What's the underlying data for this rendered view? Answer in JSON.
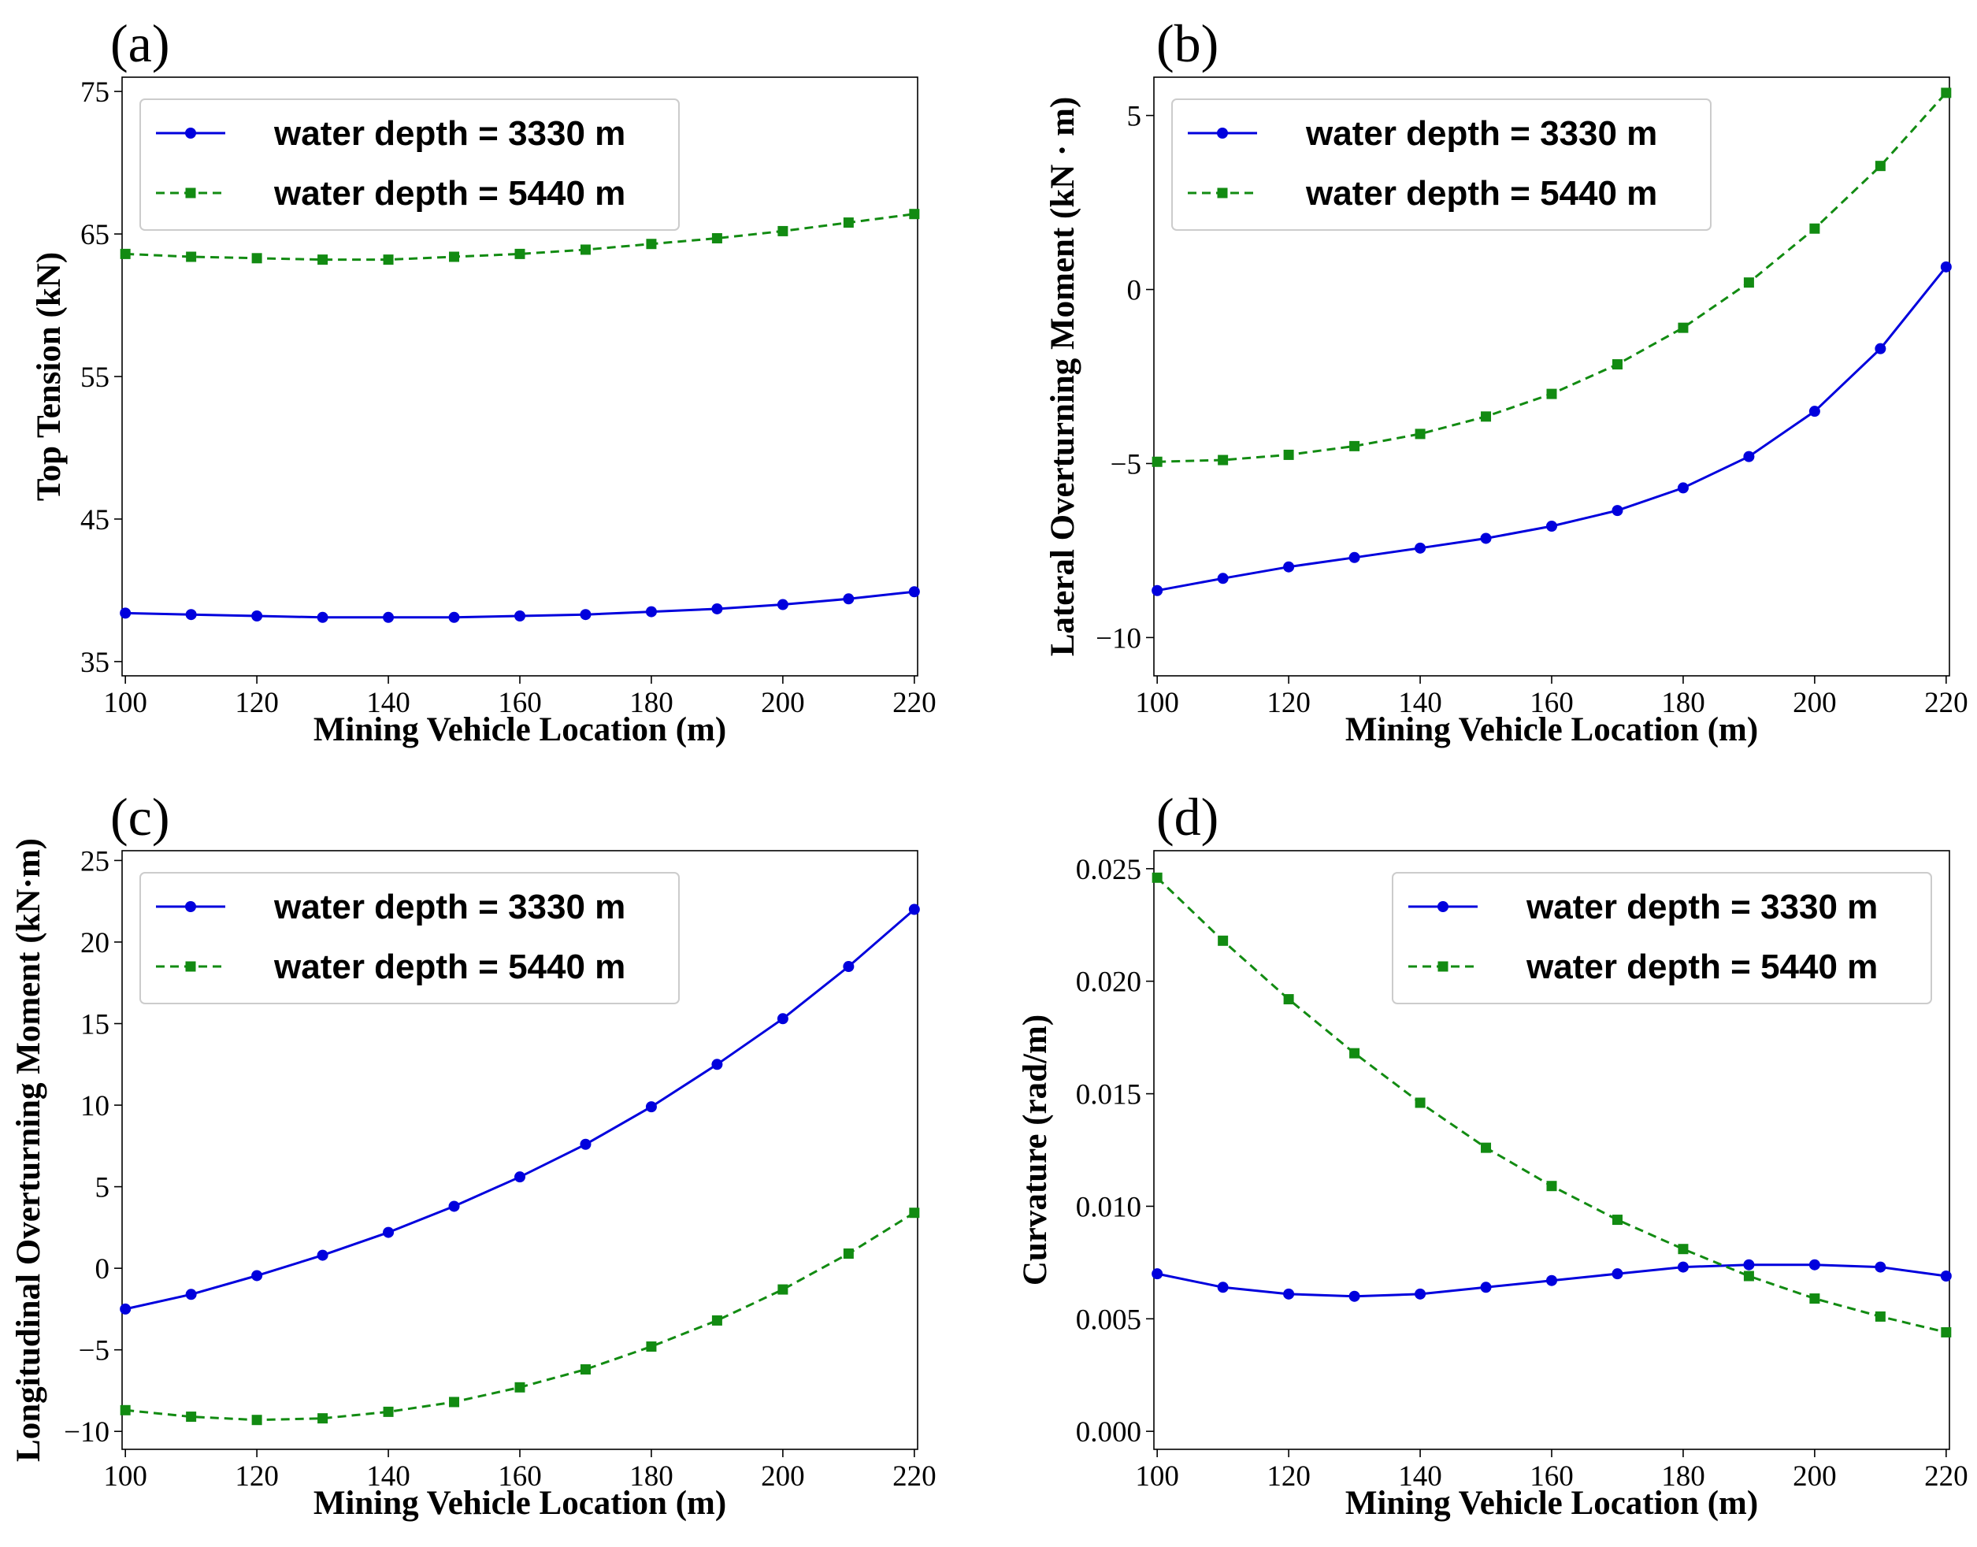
{
  "colors": {
    "series1": "#0000dd",
    "series2": "#128b12",
    "axis": "#000000",
    "legend_border": "#cccccc"
  },
  "chart_data": [
    {
      "panel_label": "(a)",
      "type": "line",
      "xlabel": "Mining Vehicle Location (m)",
      "ylabel": "Top Tension (kN)",
      "xlim": [
        99.5,
        220.5
      ],
      "ylim": [
        34,
        76
      ],
      "xticks": [
        100,
        120,
        140,
        160,
        180,
        200,
        220
      ],
      "xtick_labels": [
        "100",
        "120",
        "140",
        "160",
        "180",
        "200",
        "220"
      ],
      "yticks": [
        35,
        45,
        55,
        65,
        75
      ],
      "ytick_labels": [
        "35",
        "45",
        "55",
        "65",
        "75"
      ],
      "legend_position": "upper-left",
      "x": [
        100,
        110,
        120,
        130,
        140,
        150,
        160,
        170,
        180,
        190,
        200,
        210,
        220
      ],
      "series": [
        {
          "name": "water depth = 3330 m",
          "style": "solid-circle",
          "values": [
            38.4,
            38.3,
            38.2,
            38.1,
            38.1,
            38.1,
            38.2,
            38.3,
            38.5,
            38.7,
            39.0,
            39.4,
            39.9
          ]
        },
        {
          "name": "water depth = 5440 m",
          "style": "dashed-square",
          "values": [
            63.6,
            63.4,
            63.3,
            63.2,
            63.2,
            63.4,
            63.6,
            63.9,
            64.3,
            64.7,
            65.2,
            65.8,
            66.4
          ]
        }
      ]
    },
    {
      "panel_label": "(b)",
      "type": "line",
      "xlabel": "Mining Vehicle Location (m)",
      "ylabel": "Lateral Overturning Moment (kN · m)",
      "xlim": [
        99.5,
        220.5
      ],
      "ylim": [
        -11.1,
        6.1
      ],
      "xticks": [
        100,
        120,
        140,
        160,
        180,
        200,
        220
      ],
      "xtick_labels": [
        "100",
        "120",
        "140",
        "160",
        "180",
        "200",
        "220"
      ],
      "yticks": [
        -10,
        -5,
        0,
        5
      ],
      "ytick_labels": [
        "−10",
        "−5",
        "0",
        "5"
      ],
      "legend_position": "upper-left",
      "x": [
        100,
        110,
        120,
        130,
        140,
        150,
        160,
        170,
        180,
        190,
        200,
        210,
        220
      ],
      "series": [
        {
          "name": "water depth = 3330 m",
          "style": "solid-circle",
          "values": [
            -8.65,
            -8.3,
            -7.97,
            -7.7,
            -7.43,
            -7.15,
            -6.8,
            -6.35,
            -5.7,
            -4.8,
            -3.5,
            -1.7,
            0.65
          ]
        },
        {
          "name": "water depth = 5440 m",
          "style": "dashed-square",
          "values": [
            -4.95,
            -4.9,
            -4.75,
            -4.5,
            -4.15,
            -3.65,
            -3.0,
            -2.15,
            -1.1,
            0.2,
            1.75,
            3.55,
            5.65
          ]
        }
      ]
    },
    {
      "panel_label": "(c)",
      "type": "line",
      "xlabel": "Mining Vehicle Location (m)",
      "ylabel": "Longitudinal Overturning Moment (kN·m)",
      "xlim": [
        99.5,
        220.5
      ],
      "ylim": [
        -11.1,
        25.6
      ],
      "xticks": [
        100,
        120,
        140,
        160,
        180,
        200,
        220
      ],
      "xtick_labels": [
        "100",
        "120",
        "140",
        "160",
        "180",
        "200",
        "220"
      ],
      "yticks": [
        -10,
        -5,
        0,
        5,
        10,
        15,
        20,
        25
      ],
      "ytick_labels": [
        "−10",
        "−5",
        "0",
        "5",
        "10",
        "15",
        "20",
        "25"
      ],
      "legend_position": "upper-left",
      "x": [
        100,
        110,
        120,
        130,
        140,
        150,
        160,
        170,
        180,
        190,
        200,
        210,
        220
      ],
      "series": [
        {
          "name": "water depth = 3330 m",
          "style": "solid-circle",
          "values": [
            -2.5,
            -1.6,
            -0.45,
            0.8,
            2.2,
            3.8,
            5.6,
            7.6,
            9.9,
            12.5,
            15.3,
            18.5,
            22.0
          ]
        },
        {
          "name": "water depth = 5440 m",
          "style": "dashed-square",
          "values": [
            -8.7,
            -9.1,
            -9.3,
            -9.2,
            -8.8,
            -8.2,
            -7.3,
            -6.2,
            -4.8,
            -3.2,
            -1.3,
            0.9,
            3.4
          ]
        }
      ]
    },
    {
      "panel_label": "(d)",
      "type": "line",
      "xlabel": "Mining Vehicle Location (m)",
      "ylabel": "Curvature (rad/m)",
      "xlim": [
        99.5,
        220.5
      ],
      "ylim": [
        -0.0008,
        0.0258
      ],
      "xticks": [
        100,
        120,
        140,
        160,
        180,
        200,
        220
      ],
      "xtick_labels": [
        "100",
        "120",
        "140",
        "160",
        "180",
        "200",
        "220"
      ],
      "yticks": [
        0.0,
        0.005,
        0.01,
        0.015,
        0.02,
        0.025
      ],
      "ytick_labels": [
        "0.000",
        "0.005",
        "0.010",
        "0.015",
        "0.020",
        "0.025"
      ],
      "legend_position": "upper-right",
      "x": [
        100,
        110,
        120,
        130,
        140,
        150,
        160,
        170,
        180,
        190,
        200,
        210,
        220
      ],
      "series": [
        {
          "name": "water depth = 3330 m",
          "style": "solid-circle",
          "values": [
            0.007,
            0.0064,
            0.0061,
            0.006,
            0.0061,
            0.0064,
            0.0067,
            0.007,
            0.0073,
            0.0074,
            0.0074,
            0.0073,
            0.0069
          ]
        },
        {
          "name": "water depth = 5440 m",
          "style": "dashed-square",
          "values": [
            0.0246,
            0.0218,
            0.0192,
            0.0168,
            0.0146,
            0.0126,
            0.0109,
            0.0094,
            0.0081,
            0.0069,
            0.0059,
            0.0051,
            0.0044
          ]
        }
      ]
    }
  ]
}
